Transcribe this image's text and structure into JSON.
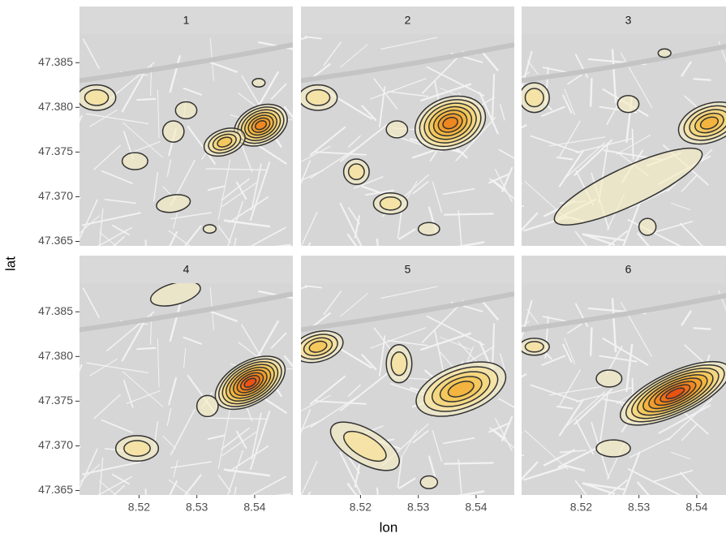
{
  "chart_data": {
    "type": "density-map",
    "facets": [
      1,
      2,
      3,
      4,
      5,
      6
    ],
    "xlabel": "lon",
    "ylabel": "lat",
    "xlim": [
      8.5097,
      8.5466
    ],
    "ylim": [
      47.3645,
      47.3882
    ],
    "xticks": [
      8.52,
      8.53,
      8.54
    ],
    "yticks": [
      47.365,
      {
        "value": 47.37,
        "label": "47.370"
      },
      47.375,
      {
        "value": 47.38,
        "label": "47.380"
      },
      47.385
    ]
  }
}
